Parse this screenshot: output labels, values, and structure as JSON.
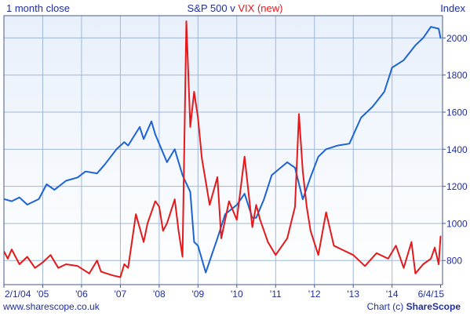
{
  "header": {
    "left_label": "1 month close",
    "title_part1": "S&P 500",
    "title_joiner": " v ",
    "title_part2": "VIX (new)",
    "right_label": "Index"
  },
  "footer": {
    "left_text": "www.sharescope.co.uk",
    "right_prefix": "Chart (c) ",
    "right_brand": "ShareScope"
  },
  "colors": {
    "plot_bg_top": "#e8f0fb",
    "plot_bg_bottom": "#ffffff",
    "grid": "#9fb7d8",
    "frame": "#4a5a8a",
    "text": "#1f2e9e",
    "series_sp500": "#1d63d2",
    "series_vix": "#e31a1c"
  },
  "chart_data": {
    "type": "line",
    "title": "S&P 500 v VIX (new)",
    "xlabel": "",
    "ylabel": "Index",
    "x_tick_labels": [
      "2/1/04",
      "'05",
      "'06",
      "'07",
      "'08",
      "'09",
      "'10",
      "'11",
      "'12",
      "'13",
      "'14",
      "6/4/15"
    ],
    "x_tick_values": [
      2004.0,
      2005.0,
      2006.0,
      2007.0,
      2008.0,
      2009.0,
      2010.0,
      2011.0,
      2012.0,
      2013.0,
      2014.0,
      2015.25
    ],
    "xlim": [
      2004.0,
      2015.3
    ],
    "ylim": [
      670,
      2120
    ],
    "y_ticks": [
      800,
      1000,
      1200,
      1400,
      1600,
      1800,
      2000
    ],
    "y_axis_side": "right",
    "grid": true,
    "legend": "none",
    "series": [
      {
        "name": "S&P 500",
        "color_key": "series_sp500",
        "x": [
          2004.0,
          2004.2,
          2004.4,
          2004.6,
          2004.9,
          2005.1,
          2005.3,
          2005.6,
          2005.9,
          2006.1,
          2006.4,
          2006.6,
          2006.9,
          2007.1,
          2007.2,
          2007.5,
          2007.6,
          2007.8,
          2007.9,
          2008.2,
          2008.4,
          2008.6,
          2008.8,
          2008.9,
          2009.0,
          2009.2,
          2009.5,
          2009.7,
          2010.0,
          2010.2,
          2010.4,
          2010.5,
          2010.7,
          2010.9,
          2011.3,
          2011.5,
          2011.7,
          2011.9,
          2012.1,
          2012.3,
          2012.6,
          2012.9,
          2013.2,
          2013.5,
          2013.8,
          2014.0,
          2014.3,
          2014.6,
          2014.8,
          2015.0,
          2015.2,
          2015.25
        ],
        "y": [
          1131,
          1120,
          1140,
          1101,
          1131,
          1211,
          1181,
          1230,
          1248,
          1280,
          1270,
          1318,
          1400,
          1438,
          1420,
          1520,
          1455,
          1550,
          1480,
          1330,
          1400,
          1260,
          1170,
          900,
          880,
          735,
          920,
          1050,
          1100,
          1160,
          1030,
          1030,
          1130,
          1260,
          1330,
          1300,
          1130,
          1250,
          1360,
          1400,
          1420,
          1430,
          1570,
          1630,
          1710,
          1840,
          1880,
          1960,
          2000,
          2060,
          2050,
          2000
        ]
      },
      {
        "name": "VIX (new)",
        "color_key": "series_vix",
        "x": [
          2004.0,
          2004.1,
          2004.2,
          2004.4,
          2004.6,
          2004.8,
          2005.0,
          2005.2,
          2005.4,
          2005.6,
          2005.9,
          2006.2,
          2006.4,
          2006.5,
          2006.8,
          2007.0,
          2007.1,
          2007.2,
          2007.4,
          2007.6,
          2007.7,
          2007.9,
          2008.0,
          2008.1,
          2008.2,
          2008.4,
          2008.5,
          2008.6,
          2008.7,
          2008.8,
          2008.9,
          2009.0,
          2009.1,
          2009.3,
          2009.5,
          2009.6,
          2009.8,
          2010.0,
          2010.2,
          2010.4,
          2010.5,
          2010.6,
          2010.8,
          2011.0,
          2011.3,
          2011.5,
          2011.6,
          2011.7,
          2011.8,
          2011.9,
          2012.1,
          2012.3,
          2012.5,
          2012.7,
          2013.0,
          2013.3,
          2013.6,
          2013.9,
          2014.1,
          2014.3,
          2014.5,
          2014.6,
          2014.8,
          2015.0,
          2015.1,
          2015.2,
          2015.25
        ],
        "y": [
          850,
          810,
          860,
          780,
          820,
          760,
          790,
          830,
          760,
          780,
          770,
          730,
          800,
          740,
          720,
          710,
          780,
          760,
          1050,
          900,
          1000,
          1120,
          1090,
          960,
          1000,
          1130,
          960,
          820,
          2090,
          1520,
          1710,
          1570,
          1350,
          1100,
          1250,
          920,
          1120,
          1020,
          1360,
          980,
          1100,
          1020,
          900,
          830,
          920,
          1090,
          1590,
          1280,
          1090,
          960,
          830,
          1060,
          880,
          860,
          830,
          770,
          840,
          810,
          880,
          760,
          900,
          730,
          780,
          810,
          870,
          780,
          930
        ]
      }
    ]
  }
}
